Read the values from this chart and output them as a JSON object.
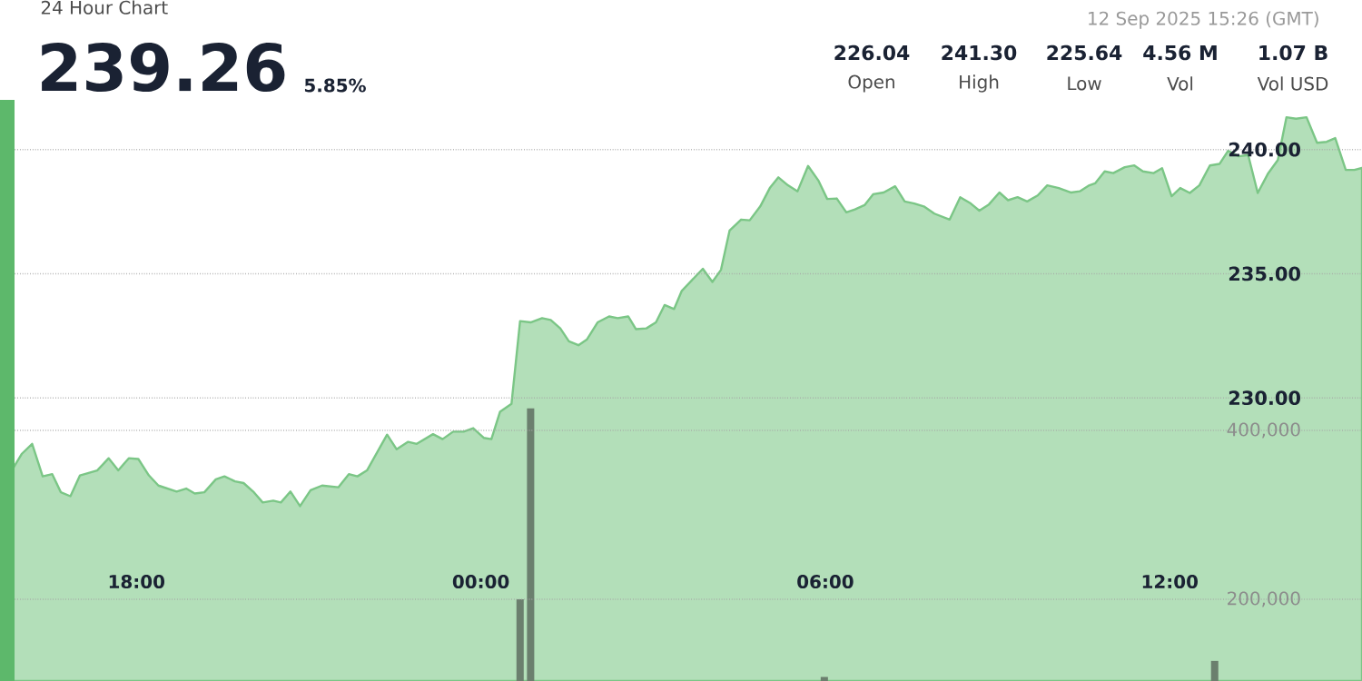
{
  "chart_data": {
    "type": "area",
    "title": "24 Hour Chart",
    "subtitle": "12 Sep 2025 15:26 (GMT)",
    "annotations": [
      "239.26",
      "5.85%",
      "226.04",
      "Open",
      "241.30",
      "High",
      "225.64",
      "Low",
      "4.56 M",
      "Vol",
      "1.07 B",
      "Vol USD"
    ],
    "xlim": [
      "2025-09-11T15:45",
      "2025-09-12T15:21"
    ],
    "xticks": [
      {
        "value": "2025-09-11T18:00",
        "label": "18:00"
      },
      {
        "value": "2025-09-12T00:00",
        "label": "00:00"
      },
      {
        "value": "2025-09-12T06:00",
        "label": "06:00"
      },
      {
        "value": "2025-09-12T12:00",
        "label": "12:00"
      }
    ],
    "ylim": [
      218.6,
      242.0
    ],
    "yticks": [
      {
        "value": 230,
        "label": "230.00"
      },
      {
        "value": 235,
        "label": "235.00"
      },
      {
        "value": 240,
        "label": "240.00"
      }
    ],
    "y2lim": [
      103200,
      791400
    ],
    "y2ticks": [
      {
        "value": 200000,
        "label": "200,000"
      },
      {
        "value": 400000,
        "label": "400,000"
      }
    ],
    "grid": "y",
    "series": [
      {
        "color": "#b3dfb9",
        "x": [
          "2025-09-11T15:45",
          "2025-09-11T16:00",
          "2025-09-11T16:11",
          "2025-09-11T16:22",
          "2025-09-11T16:32",
          "2025-09-11T16:41",
          "2025-09-11T16:51",
          "2025-09-11T17:01",
          "2025-09-11T17:19",
          "2025-09-11T17:31",
          "2025-09-11T17:41",
          "2025-09-11T17:52",
          "2025-09-11T18:02",
          "2025-09-11T18:13",
          "2025-09-11T18:23",
          "2025-09-11T18:42",
          "2025-09-11T18:52",
          "2025-09-11T19:01",
          "2025-09-11T19:11",
          "2025-09-11T19:23",
          "2025-09-11T19:32",
          "2025-09-11T19:43",
          "2025-09-11T19:52",
          "2025-09-11T20:02",
          "2025-09-11T20:12",
          "2025-09-11T20:23",
          "2025-09-11T20:31",
          "2025-09-11T20:41",
          "2025-09-11T20:51",
          "2025-09-11T21:02",
          "2025-09-11T21:14",
          "2025-09-11T21:31",
          "2025-09-11T21:42",
          "2025-09-11T21:51",
          "2025-09-11T22:01",
          "2025-09-11T22:22",
          "2025-09-11T22:32",
          "2025-09-11T22:44",
          "2025-09-11T22:53",
          "2025-09-11T23:10",
          "2025-09-11T23:20",
          "2025-09-11T23:31",
          "2025-09-11T23:42",
          "2025-09-11T23:52",
          "2025-09-12T00:03",
          "2025-09-12T00:11",
          "2025-09-12T00:20",
          "2025-09-12T00:32",
          "2025-09-12T00:41",
          "2025-09-12T00:52",
          "2025-09-12T01:04",
          "2025-09-12T01:13",
          "2025-09-12T01:23",
          "2025-09-12T01:32",
          "2025-09-12T01:42",
          "2025-09-12T01:51",
          "2025-09-12T02:02",
          "2025-09-12T02:14",
          "2025-09-12T02:23",
          "2025-09-12T02:34",
          "2025-09-12T02:42",
          "2025-09-12T02:53",
          "2025-09-12T03:03",
          "2025-09-12T03:12",
          "2025-09-12T03:22",
          "2025-09-12T03:30",
          "2025-09-12T03:52",
          "2025-09-12T04:02",
          "2025-09-12T04:11",
          "2025-09-12T04:20",
          "2025-09-12T04:32",
          "2025-09-12T04:41",
          "2025-09-12T04:52",
          "2025-09-12T05:02",
          "2025-09-12T05:11",
          "2025-09-12T05:21",
          "2025-09-12T05:31",
          "2025-09-12T05:42",
          "2025-09-12T05:53",
          "2025-09-12T06:02",
          "2025-09-12T06:12",
          "2025-09-12T06:22",
          "2025-09-12T06:31",
          "2025-09-12T06:41",
          "2025-09-12T06:50",
          "2025-09-12T07:01",
          "2025-09-12T07:13",
          "2025-09-12T07:23",
          "2025-09-12T07:33",
          "2025-09-12T07:43",
          "2025-09-12T07:54",
          "2025-09-12T08:10",
          "2025-09-12T08:21",
          "2025-09-12T08:32",
          "2025-09-12T08:41",
          "2025-09-12T08:51",
          "2025-09-12T09:02",
          "2025-09-12T09:11",
          "2025-09-12T09:21",
          "2025-09-12T09:31",
          "2025-09-12T09:42",
          "2025-09-12T09:52",
          "2025-09-12T10:04",
          "2025-09-12T10:17",
          "2025-09-12T10:26",
          "2025-09-12T10:36",
          "2025-09-12T10:42",
          "2025-09-12T10:52",
          "2025-09-12T11:01",
          "2025-09-12T11:13",
          "2025-09-12T11:23",
          "2025-09-12T11:32",
          "2025-09-12T11:43",
          "2025-09-12T11:52",
          "2025-09-12T12:02",
          "2025-09-12T12:11",
          "2025-09-12T12:21",
          "2025-09-12T12:31",
          "2025-09-12T12:42",
          "2025-09-12T12:52",
          "2025-09-12T13:01",
          "2025-09-12T13:12",
          "2025-09-12T13:22",
          "2025-09-12T13:32",
          "2025-09-12T13:43",
          "2025-09-12T13:53",
          "2025-09-12T14:02",
          "2025-09-12T14:12",
          "2025-09-12T14:23",
          "2025-09-12T14:34",
          "2025-09-12T14:44",
          "2025-09-12T14:53",
          "2025-09-12T15:04",
          "2025-09-12T15:13",
          "2025-09-12T15:21"
        ],
        "values": [
          226.77,
          227.74,
          228.15,
          226.84,
          226.93,
          226.2,
          226.04,
          226.88,
          227.08,
          227.57,
          227.08,
          227.57,
          227.54,
          226.88,
          226.47,
          226.23,
          226.35,
          226.15,
          226.2,
          226.72,
          226.84,
          226.64,
          226.57,
          226.23,
          225.79,
          225.86,
          225.79,
          226.23,
          225.64,
          226.28,
          226.47,
          226.4,
          226.93,
          226.84,
          227.08,
          228.52,
          227.93,
          228.23,
          228.15,
          228.54,
          228.34,
          228.64,
          228.64,
          228.78,
          228.39,
          228.34,
          229.44,
          229.76,
          233.09,
          233.04,
          233.21,
          233.14,
          232.8,
          232.28,
          232.12,
          232.36,
          233.04,
          233.28,
          233.21,
          233.28,
          232.77,
          232.8,
          233.04,
          233.74,
          233.58,
          234.31,
          235.2,
          234.67,
          235.16,
          236.74,
          237.18,
          237.15,
          237.71,
          238.45,
          238.88,
          238.56,
          238.32,
          239.34,
          238.74,
          238.01,
          238.03,
          237.47,
          237.59,
          237.76,
          238.2,
          238.27,
          238.52,
          237.91,
          237.83,
          237.71,
          237.42,
          237.18,
          238.08,
          237.83,
          237.54,
          237.79,
          238.27,
          237.96,
          238.08,
          237.91,
          238.15,
          238.56,
          238.45,
          238.27,
          238.32,
          238.56,
          238.64,
          239.12,
          239.05,
          239.29,
          239.36,
          239.12,
          239.05,
          239.25,
          238.12,
          238.45,
          238.25,
          238.56,
          239.36,
          239.42,
          239.95,
          239.73,
          239.78,
          238.25,
          239.05,
          239.58,
          241.3,
          241.24,
          241.3,
          240.27,
          240.31,
          240.46,
          239.18,
          239.18,
          239.26
        ]
      },
      {
        "type": "bar",
        "axis": "y2",
        "color": "#6b7f6e",
        "x": [
          "2025-09-12T00:41",
          "2025-09-12T00:52",
          "2025-09-12T05:59",
          "2025-09-12T12:47"
        ],
        "values": [
          200000,
          426000,
          108000,
          127000
        ]
      }
    ]
  }
}
